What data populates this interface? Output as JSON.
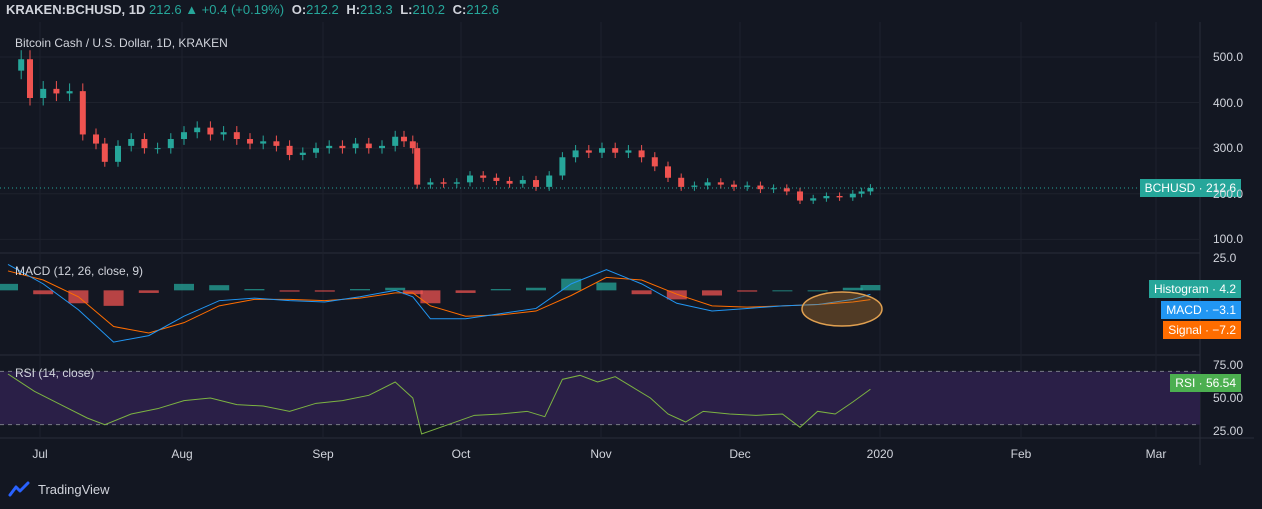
{
  "header": {
    "symbol": "KRAKEN:BCHUSD, 1D",
    "price": "212.6",
    "change": "▲ +0.4 (+0.19%)",
    "o_label": "O:",
    "o_val": "212.2",
    "h_label": "H:",
    "h_val": "213.3",
    "l_label": "L:",
    "l_val": "210.2",
    "c_label": "C:",
    "c_val": "212.6"
  },
  "price_pane": {
    "title": "Bitcoin Cash / U.S. Dollar, 1D, KRAKEN",
    "badge_label": "BCHUSD",
    "badge_value": "212.6"
  },
  "macd_pane": {
    "title": "MACD (12, 26, close, 9)",
    "histogram_label": "Histogram",
    "histogram_value": "4.2",
    "macd_label": "MACD",
    "macd_value": "−3.1",
    "signal_label": "Signal",
    "signal_value": "−7.2"
  },
  "rsi_pane": {
    "title": "RSI (14, close)",
    "rsi_label": "RSI",
    "rsi_value": "56.54"
  },
  "footer": {
    "brand": "TradingView"
  },
  "colors": {
    "background": "#131722",
    "up": "#26a69a",
    "down": "#ef5350",
    "macd": "#2196f3",
    "signal": "#ff6d00",
    "rsi": "#7cb342",
    "rsi_band": "#2a1f47",
    "annotation": "#c77f2c"
  },
  "chart_data": [
    {
      "type": "candlestick",
      "title": "Bitcoin Cash / U.S. Dollar, 1D, KRAKEN",
      "ylim": [
        70,
        535
      ],
      "y_ticks": [
        "500.0",
        "400.0",
        "300.0",
        "200.0",
        "100.0"
      ],
      "x_ticks": [
        "Jul",
        "Aug",
        "Sep",
        "Oct",
        "Nov",
        "Dec",
        "2020",
        "Feb",
        "Mar"
      ],
      "last_price": 212.6,
      "close_series": [
        {
          "t": 0,
          "v": 470
        },
        {
          "t": 3,
          "v": 495
        },
        {
          "t": 5,
          "v": 410
        },
        {
          "t": 8,
          "v": 430
        },
        {
          "t": 11,
          "v": 420
        },
        {
          "t": 14,
          "v": 425
        },
        {
          "t": 17,
          "v": 330
        },
        {
          "t": 20,
          "v": 310
        },
        {
          "t": 22,
          "v": 270
        },
        {
          "t": 25,
          "v": 305
        },
        {
          "t": 28,
          "v": 320
        },
        {
          "t": 31,
          "v": 300
        },
        {
          "t": 34,
          "v": 300
        },
        {
          "t": 37,
          "v": 320
        },
        {
          "t": 40,
          "v": 335
        },
        {
          "t": 43,
          "v": 345
        },
        {
          "t": 46,
          "v": 330
        },
        {
          "t": 49,
          "v": 335
        },
        {
          "t": 52,
          "v": 320
        },
        {
          "t": 55,
          "v": 310
        },
        {
          "t": 58,
          "v": 315
        },
        {
          "t": 61,
          "v": 305
        },
        {
          "t": 64,
          "v": 285
        },
        {
          "t": 67,
          "v": 290
        },
        {
          "t": 70,
          "v": 300
        },
        {
          "t": 73,
          "v": 305
        },
        {
          "t": 76,
          "v": 300
        },
        {
          "t": 79,
          "v": 310
        },
        {
          "t": 82,
          "v": 300
        },
        {
          "t": 85,
          "v": 305
        },
        {
          "t": 88,
          "v": 325
        },
        {
          "t": 90,
          "v": 315
        },
        {
          "t": 92,
          "v": 300
        },
        {
          "t": 93,
          "v": 220
        },
        {
          "t": 96,
          "v": 225
        },
        {
          "t": 99,
          "v": 222
        },
        {
          "t": 102,
          "v": 225
        },
        {
          "t": 105,
          "v": 240
        },
        {
          "t": 108,
          "v": 235
        },
        {
          "t": 111,
          "v": 228
        },
        {
          "t": 114,
          "v": 222
        },
        {
          "t": 117,
          "v": 230
        },
        {
          "t": 120,
          "v": 215
        },
        {
          "t": 123,
          "v": 240
        },
        {
          "t": 126,
          "v": 280
        },
        {
          "t": 129,
          "v": 295
        },
        {
          "t": 132,
          "v": 290
        },
        {
          "t": 135,
          "v": 300
        },
        {
          "t": 138,
          "v": 290
        },
        {
          "t": 141,
          "v": 295
        },
        {
          "t": 144,
          "v": 280
        },
        {
          "t": 147,
          "v": 260
        },
        {
          "t": 150,
          "v": 235
        },
        {
          "t": 153,
          "v": 215
        },
        {
          "t": 156,
          "v": 218
        },
        {
          "t": 159,
          "v": 225
        },
        {
          "t": 162,
          "v": 220
        },
        {
          "t": 165,
          "v": 215
        },
        {
          "t": 168,
          "v": 218
        },
        {
          "t": 171,
          "v": 210
        },
        {
          "t": 174,
          "v": 212
        },
        {
          "t": 177,
          "v": 205
        },
        {
          "t": 180,
          "v": 185
        },
        {
          "t": 183,
          "v": 190
        },
        {
          "t": 186,
          "v": 195
        },
        {
          "t": 189,
          "v": 192
        },
        {
          "t": 192,
          "v": 200
        },
        {
          "t": 194,
          "v": 205
        },
        {
          "t": 196,
          "v": 212.6
        }
      ]
    },
    {
      "type": "line",
      "title": "MACD (12, 26, close, 9)",
      "ylim": [
        -50,
        25
      ],
      "y_ticks": [
        "25.0"
      ],
      "series": [
        {
          "name": "MACD",
          "values": [
            {
              "t": 0,
              "v": 20
            },
            {
              "t": 8,
              "v": 5
            },
            {
              "t": 16,
              "v": -15
            },
            {
              "t": 24,
              "v": -40
            },
            {
              "t": 32,
              "v": -35
            },
            {
              "t": 40,
              "v": -20
            },
            {
              "t": 48,
              "v": -8
            },
            {
              "t": 56,
              "v": -6
            },
            {
              "t": 64,
              "v": -8
            },
            {
              "t": 72,
              "v": -9
            },
            {
              "t": 80,
              "v": -5
            },
            {
              "t": 88,
              "v": 0
            },
            {
              "t": 92,
              "v": -5
            },
            {
              "t": 96,
              "v": -22
            },
            {
              "t": 104,
              "v": -22
            },
            {
              "t": 112,
              "v": -18
            },
            {
              "t": 120,
              "v": -14
            },
            {
              "t": 128,
              "v": 5
            },
            {
              "t": 136,
              "v": 16
            },
            {
              "t": 144,
              "v": 5
            },
            {
              "t": 152,
              "v": -10
            },
            {
              "t": 160,
              "v": -16
            },
            {
              "t": 168,
              "v": -14
            },
            {
              "t": 176,
              "v": -12
            },
            {
              "t": 184,
              "v": -11
            },
            {
              "t": 192,
              "v": -7
            },
            {
              "t": 196,
              "v": -3.1
            }
          ]
        },
        {
          "name": "Signal",
          "values": [
            {
              "t": 0,
              "v": 15
            },
            {
              "t": 8,
              "v": 8
            },
            {
              "t": 16,
              "v": -5
            },
            {
              "t": 24,
              "v": -28
            },
            {
              "t": 32,
              "v": -33
            },
            {
              "t": 40,
              "v": -25
            },
            {
              "t": 48,
              "v": -12
            },
            {
              "t": 56,
              "v": -7
            },
            {
              "t": 64,
              "v": -7
            },
            {
              "t": 72,
              "v": -8
            },
            {
              "t": 80,
              "v": -6
            },
            {
              "t": 88,
              "v": -2
            },
            {
              "t": 92,
              "v": -2
            },
            {
              "t": 96,
              "v": -12
            },
            {
              "t": 104,
              "v": -20
            },
            {
              "t": 112,
              "v": -19
            },
            {
              "t": 120,
              "v": -16
            },
            {
              "t": 128,
              "v": -4
            },
            {
              "t": 136,
              "v": 10
            },
            {
              "t": 144,
              "v": 8
            },
            {
              "t": 152,
              "v": -3
            },
            {
              "t": 160,
              "v": -12
            },
            {
              "t": 168,
              "v": -13
            },
            {
              "t": 176,
              "v": -12
            },
            {
              "t": 184,
              "v": -11
            },
            {
              "t": 192,
              "v": -9
            },
            {
              "t": 196,
              "v": -7.2
            }
          ]
        }
      ]
    },
    {
      "type": "line",
      "title": "RSI (14, close)",
      "ylim": [
        20,
        80
      ],
      "y_ticks": [
        "75.00",
        "50.00",
        "25.00"
      ],
      "band": [
        30,
        70
      ],
      "series": [
        {
          "name": "RSI",
          "values": [
            {
              "t": 0,
              "v": 68
            },
            {
              "t": 6,
              "v": 55
            },
            {
              "t": 12,
              "v": 45
            },
            {
              "t": 18,
              "v": 35
            },
            {
              "t": 22,
              "v": 30
            },
            {
              "t": 28,
              "v": 38
            },
            {
              "t": 34,
              "v": 42
            },
            {
              "t": 40,
              "v": 48
            },
            {
              "t": 46,
              "v": 50
            },
            {
              "t": 52,
              "v": 45
            },
            {
              "t": 58,
              "v": 44
            },
            {
              "t": 64,
              "v": 40
            },
            {
              "t": 70,
              "v": 46
            },
            {
              "t": 76,
              "v": 48
            },
            {
              "t": 82,
              "v": 52
            },
            {
              "t": 88,
              "v": 62
            },
            {
              "t": 92,
              "v": 50
            },
            {
              "t": 94,
              "v": 23
            },
            {
              "t": 100,
              "v": 30
            },
            {
              "t": 106,
              "v": 37
            },
            {
              "t": 112,
              "v": 38
            },
            {
              "t": 118,
              "v": 40
            },
            {
              "t": 122,
              "v": 36
            },
            {
              "t": 126,
              "v": 64
            },
            {
              "t": 130,
              "v": 67
            },
            {
              "t": 134,
              "v": 62
            },
            {
              "t": 138,
              "v": 66
            },
            {
              "t": 142,
              "v": 58
            },
            {
              "t": 146,
              "v": 50
            },
            {
              "t": 150,
              "v": 38
            },
            {
              "t": 154,
              "v": 32
            },
            {
              "t": 158,
              "v": 40
            },
            {
              "t": 164,
              "v": 38
            },
            {
              "t": 170,
              "v": 37
            },
            {
              "t": 176,
              "v": 38
            },
            {
              "t": 180,
              "v": 28
            },
            {
              "t": 184,
              "v": 40
            },
            {
              "t": 188,
              "v": 38
            },
            {
              "t": 192,
              "v": 47
            },
            {
              "t": 196,
              "v": 56.54
            }
          ]
        }
      ]
    }
  ]
}
